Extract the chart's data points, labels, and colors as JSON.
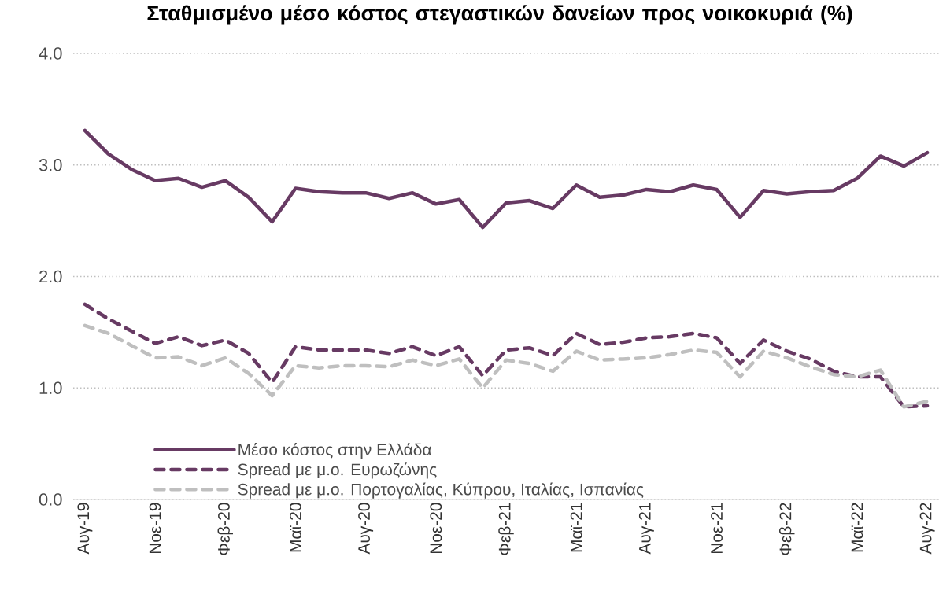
{
  "chart_data": {
    "type": "line",
    "title": "Σταθμισμένο μέσο κόστος στεγαστικών δανείων προς νοικοκυριά (%)",
    "categories": [
      "Αυγ-19",
      null,
      null,
      "Νοε-19",
      null,
      null,
      "Φεβ-20",
      null,
      null,
      "Μαϊ-20",
      null,
      null,
      "Αυγ-20",
      null,
      null,
      "Νοε-20",
      null,
      null,
      "Φεβ-21",
      null,
      null,
      "Μαϊ-21",
      null,
      null,
      "Αυγ-21",
      null,
      null,
      "Νοε-21",
      null,
      null,
      "Φεβ-22",
      null,
      null,
      "Μαϊ-22",
      null,
      null,
      "Αυγ-22"
    ],
    "series": [
      {
        "name": "Μέσο κόστος στην Ελλάδα",
        "color": "#673a63",
        "line_style": "solid",
        "values": [
          3.31,
          3.1,
          2.96,
          2.86,
          2.88,
          2.8,
          2.86,
          2.71,
          2.49,
          2.79,
          2.76,
          2.75,
          2.75,
          2.7,
          2.75,
          2.65,
          2.69,
          2.44,
          2.66,
          2.68,
          2.61,
          2.82,
          2.71,
          2.73,
          2.78,
          2.76,
          2.82,
          2.78,
          2.53,
          2.77,
          2.74,
          2.76,
          2.77,
          2.88,
          3.08,
          2.99,
          3.11
        ]
      },
      {
        "name": "Spread με μ.ο. Ευρωζώνης",
        "color": "#673a63",
        "line_style": "dashed",
        "values": [
          1.75,
          1.62,
          1.51,
          1.4,
          1.46,
          1.38,
          1.43,
          1.31,
          1.05,
          1.37,
          1.34,
          1.34,
          1.34,
          1.31,
          1.37,
          1.29,
          1.37,
          1.11,
          1.34,
          1.36,
          1.29,
          1.49,
          1.39,
          1.41,
          1.45,
          1.46,
          1.49,
          1.45,
          1.22,
          1.43,
          1.33,
          1.26,
          1.15,
          1.1,
          1.1,
          0.83,
          0.84
        ]
      },
      {
        "name": "Spread με μ.ο. Πορτογαλίας, Κύπρου, Ιταλίας, Ισπανίας",
        "color": "#bfbfbf",
        "line_style": "dashed",
        "values": [
          1.56,
          1.49,
          1.38,
          1.27,
          1.28,
          1.2,
          1.27,
          1.13,
          0.93,
          1.2,
          1.18,
          1.2,
          1.2,
          1.19,
          1.25,
          1.2,
          1.26,
          1.0,
          1.25,
          1.22,
          1.15,
          1.33,
          1.25,
          1.26,
          1.27,
          1.3,
          1.34,
          1.32,
          1.1,
          1.33,
          1.27,
          1.19,
          1.12,
          1.1,
          1.16,
          0.83,
          0.88
        ]
      }
    ],
    "ylim": [
      0,
      4
    ],
    "yticks": [
      {
        "value": 0,
        "label": "0.0"
      },
      {
        "value": 1,
        "label": "1.0"
      },
      {
        "value": 2,
        "label": "2.0"
      },
      {
        "value": 3,
        "label": "3.0"
      },
      {
        "value": 4,
        "label": "4.0"
      }
    ],
    "grid": "y",
    "legend": "bottom left",
    "marker": "none"
  }
}
